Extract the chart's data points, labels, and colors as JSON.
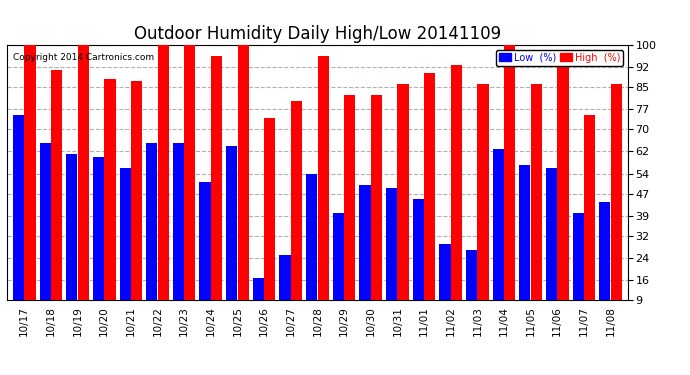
{
  "title": "Outdoor Humidity Daily High/Low 20141109",
  "copyright": "Copyright 2014 Cartronics.com",
  "dates": [
    "10/17",
    "10/18",
    "10/19",
    "10/20",
    "10/21",
    "10/22",
    "10/23",
    "10/24",
    "10/25",
    "10/26",
    "10/27",
    "10/28",
    "10/29",
    "10/30",
    "10/31",
    "11/01",
    "11/02",
    "11/03",
    "11/04",
    "11/05",
    "11/06",
    "11/07",
    "11/08"
  ],
  "high": [
    100,
    91,
    100,
    88,
    87,
    100,
    100,
    96,
    100,
    74,
    80,
    96,
    82,
    82,
    86,
    90,
    93,
    86,
    100,
    86,
    93,
    75,
    86
  ],
  "low": [
    75,
    65,
    61,
    60,
    56,
    65,
    65,
    51,
    64,
    17,
    25,
    54,
    40,
    50,
    49,
    45,
    29,
    27,
    63,
    57,
    56,
    40,
    44
  ],
  "high_color": "#ff0000",
  "low_color": "#0000ff",
  "bg_color": "#ffffff",
  "yticks": [
    9,
    16,
    24,
    32,
    39,
    47,
    54,
    62,
    70,
    77,
    85,
    92,
    100
  ],
  "ymin": 9,
  "ymax": 100,
  "grid_color": "#b0b0b0",
  "title_fontsize": 12,
  "legend_low_label": "Low  (%)",
  "legend_high_label": "High  (%)"
}
